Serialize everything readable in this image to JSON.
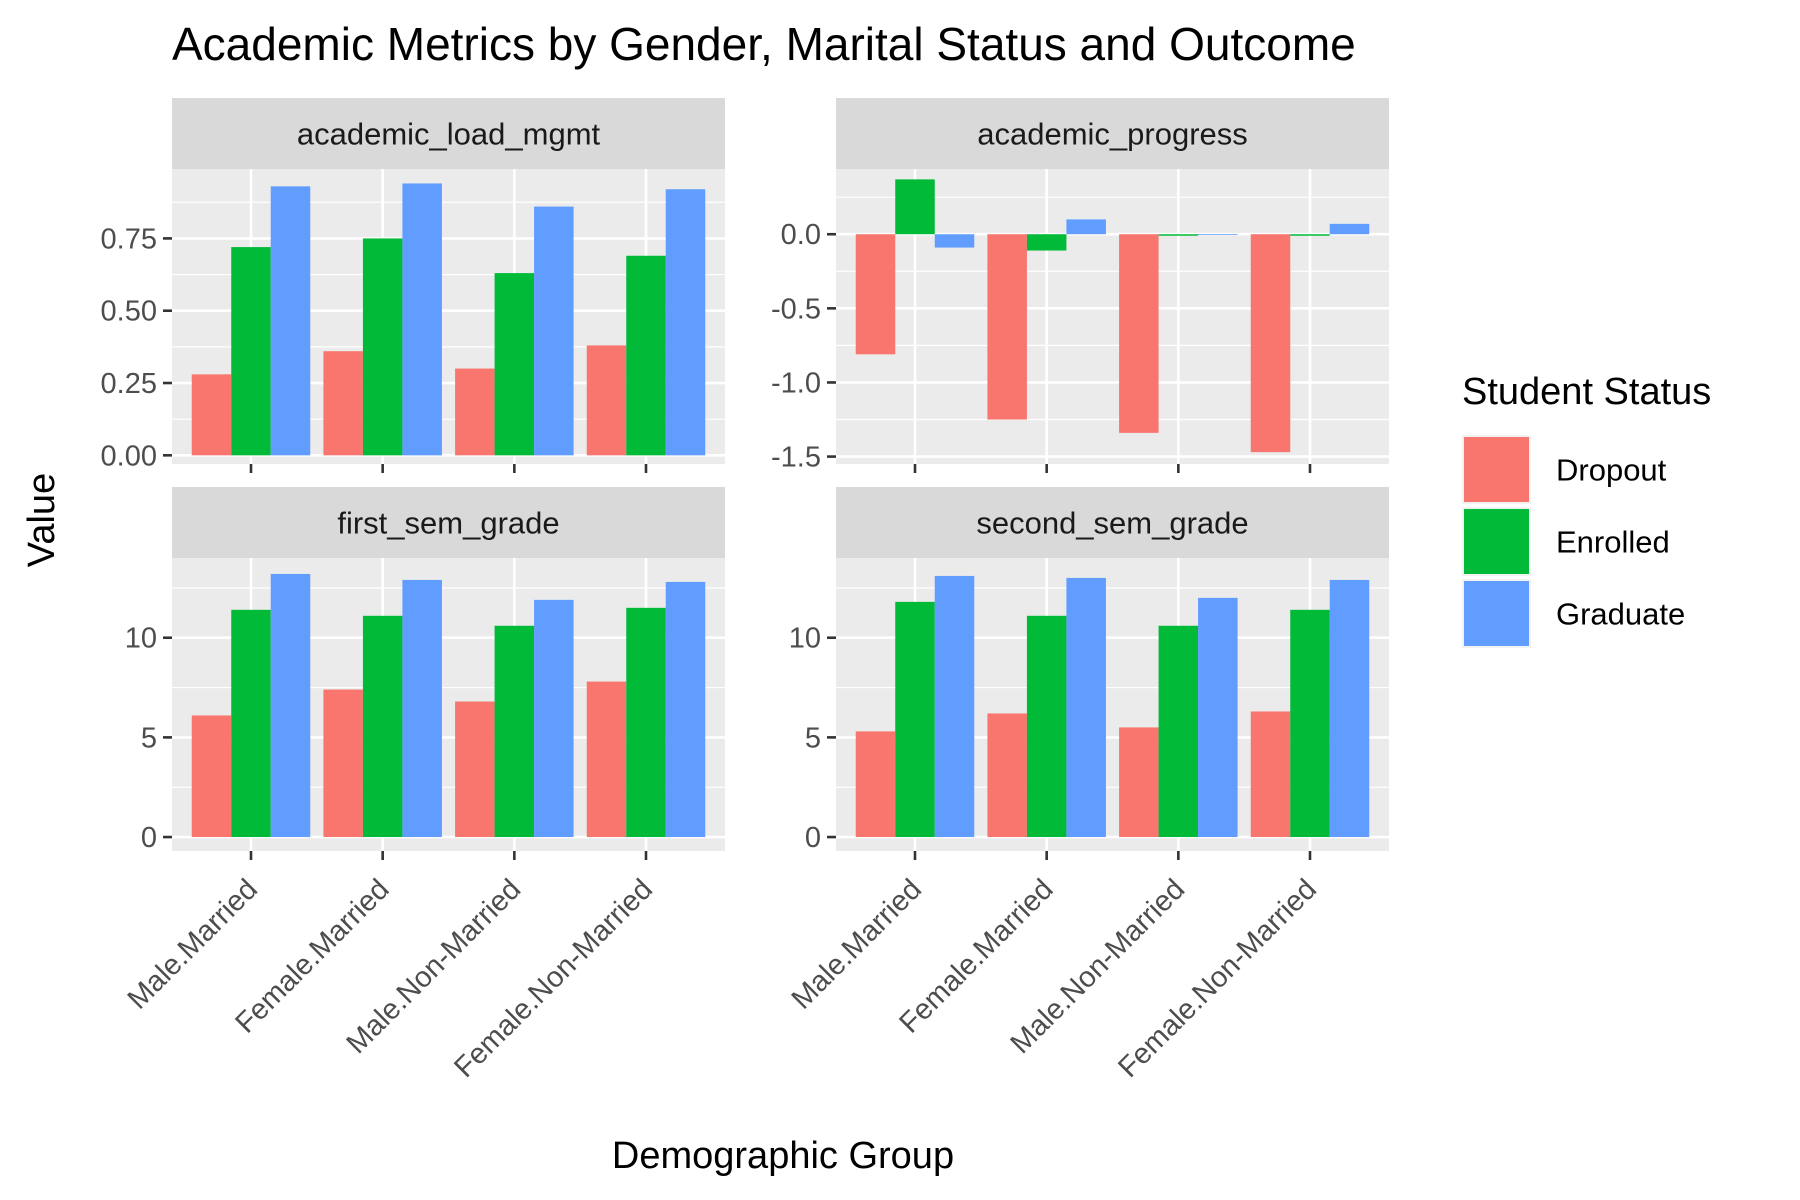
{
  "chart_data": {
    "type": "bar",
    "title": "Academic Metrics by Gender, Marital Status and Outcome",
    "xlabel": "Demographic Group",
    "ylabel": "Value",
    "categories": [
      "Male.Married",
      "Female.Married",
      "Male.Non-Married",
      "Female.Non-Married"
    ],
    "legend": {
      "title": "Student Status",
      "position": "right",
      "entries": [
        "Dropout",
        "Enrolled",
        "Graduate"
      ]
    },
    "colors": {
      "Dropout": "#F8766D",
      "Enrolled": "#00BA38",
      "Graduate": "#619CFF",
      "panel_bg": "#EBEBEB",
      "strip_bg": "#D9D9D9",
      "grid": "#FFFFFF"
    },
    "grid": true,
    "facets": [
      {
        "name": "academic_load_mgmt",
        "ylim": [
          -0.03,
          0.99
        ],
        "yticks": [
          0,
          0.25,
          0.5,
          0.75
        ],
        "ytick_labels": [
          "0.00",
          "0.25",
          "0.50",
          "0.75"
        ],
        "series": [
          {
            "name": "Dropout",
            "values": [
              0.28,
              0.36,
              0.3,
              0.38
            ]
          },
          {
            "name": "Enrolled",
            "values": [
              0.72,
              0.75,
              0.63,
              0.69
            ]
          },
          {
            "name": "Graduate",
            "values": [
              0.93,
              0.94,
              0.86,
              0.92
            ]
          }
        ]
      },
      {
        "name": "academic_progress",
        "ylim": [
          -1.55,
          0.44
        ],
        "yticks": [
          -1.5,
          -1.0,
          -0.5,
          0.0
        ],
        "ytick_labels": [
          "-1.5",
          "-1.0",
          "-0.5",
          "0.0"
        ],
        "series": [
          {
            "name": "Dropout",
            "values": [
              -0.81,
              -1.25,
              -1.34,
              -1.47
            ]
          },
          {
            "name": "Enrolled",
            "values": [
              0.37,
              -0.11,
              -0.01,
              -0.01
            ]
          },
          {
            "name": "Graduate",
            "values": [
              -0.09,
              0.1,
              0.0,
              0.07
            ]
          }
        ]
      },
      {
        "name": "first_sem_grade",
        "ylim": [
          -0.7,
          14.0
        ],
        "yticks": [
          0,
          5,
          10
        ],
        "ytick_labels": [
          "0",
          "5",
          "10"
        ],
        "series": [
          {
            "name": "Dropout",
            "values": [
              6.1,
              7.4,
              6.8,
              7.8
            ]
          },
          {
            "name": "Enrolled",
            "values": [
              11.4,
              11.1,
              10.6,
              11.5
            ]
          },
          {
            "name": "Graduate",
            "values": [
              13.2,
              12.9,
              11.9,
              12.8
            ]
          }
        ]
      },
      {
        "name": "second_sem_grade",
        "ylim": [
          -0.7,
          14.0
        ],
        "yticks": [
          0,
          5,
          10
        ],
        "ytick_labels": [
          "0",
          "5",
          "10"
        ],
        "series": [
          {
            "name": "Dropout",
            "values": [
              5.3,
              6.2,
              5.5,
              6.3
            ]
          },
          {
            "name": "Enrolled",
            "values": [
              11.8,
              11.1,
              10.6,
              11.4
            ]
          },
          {
            "name": "Graduate",
            "values": [
              13.1,
              13.0,
              12.0,
              12.9
            ]
          }
        ]
      }
    ]
  }
}
